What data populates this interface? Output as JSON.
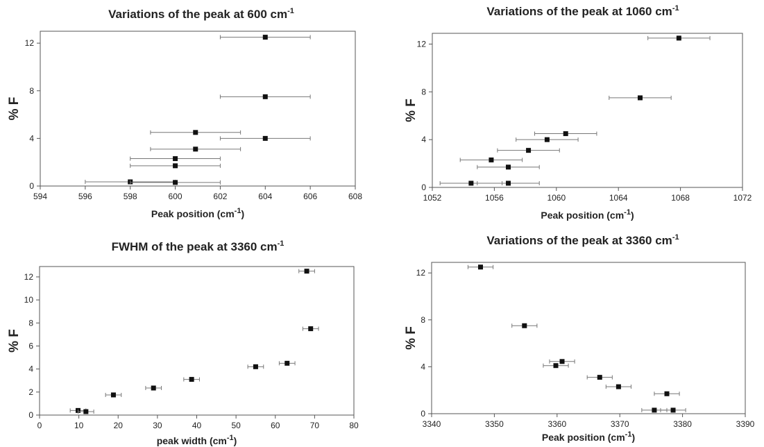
{
  "chart_data": [
    {
      "type": "scatter",
      "title": "Variations of the peak at 600 cm",
      "title_sup": "-1",
      "xlabel": "Peak position (cm",
      "xlabel_sup": "-1",
      "xlabel_suffix": ")",
      "ylabel": "% F",
      "xlim": [
        594,
        608
      ],
      "ylim": [
        0,
        13
      ],
      "xticks": [
        594,
        596,
        598,
        600,
        602,
        604,
        606,
        608
      ],
      "yticks": [
        0,
        4,
        8,
        12
      ],
      "points": [
        {
          "x": 604.0,
          "y": 12.5,
          "xerr": 2.0
        },
        {
          "x": 604.0,
          "y": 7.5,
          "xerr": 2.0
        },
        {
          "x": 600.9,
          "y": 4.5,
          "xerr": 2.0
        },
        {
          "x": 604.0,
          "y": 4.0,
          "xerr": 2.0
        },
        {
          "x": 600.9,
          "y": 3.1,
          "xerr": 2.0
        },
        {
          "x": 600.0,
          "y": 2.3,
          "xerr": 2.0
        },
        {
          "x": 600.0,
          "y": 1.7,
          "xerr": 2.0
        },
        {
          "x": 598.0,
          "y": 0.35,
          "xerr": 2.0
        },
        {
          "x": 600.0,
          "y": 0.3,
          "xerr": 2.0
        }
      ]
    },
    {
      "type": "scatter",
      "title": "Variations of the peak at 1060 cm",
      "title_sup": "-1",
      "xlabel": "Peak position (cm",
      "xlabel_sup": "-1",
      "xlabel_suffix": ")",
      "ylabel": "% F",
      "xlim": [
        1052,
        1072
      ],
      "ylim": [
        0,
        12.9
      ],
      "xticks": [
        1052,
        1056,
        1060,
        1064,
        1068,
        1072
      ],
      "yticks": [
        0,
        4,
        8,
        12
      ],
      "points": [
        {
          "x": 1067.9,
          "y": 12.5,
          "xerr": 2.0
        },
        {
          "x": 1065.4,
          "y": 7.5,
          "xerr": 2.0
        },
        {
          "x": 1060.6,
          "y": 4.5,
          "xerr": 2.0
        },
        {
          "x": 1059.4,
          "y": 4.0,
          "xerr": 2.0
        },
        {
          "x": 1058.2,
          "y": 3.1,
          "xerr": 2.0
        },
        {
          "x": 1055.8,
          "y": 2.3,
          "xerr": 2.0
        },
        {
          "x": 1056.9,
          "y": 1.7,
          "xerr": 2.0
        },
        {
          "x": 1054.5,
          "y": 0.35,
          "xerr": 2.0
        },
        {
          "x": 1056.9,
          "y": 0.35,
          "xerr": 2.0
        }
      ]
    },
    {
      "type": "scatter",
      "title": "FWHM of the peak at 3360 cm",
      "title_sup": "-1",
      "xlabel": "peak width (cm",
      "xlabel_sup": "-1",
      "xlabel_suffix": ")",
      "ylabel": "% F",
      "xlim": [
        0,
        80
      ],
      "ylim": [
        0,
        12.9
      ],
      "xticks": [
        0,
        10,
        20,
        30,
        40,
        50,
        60,
        70,
        80
      ],
      "yticks": [
        0,
        2,
        4,
        6,
        8,
        10,
        12
      ],
      "points": [
        {
          "x": 68.0,
          "y": 12.5,
          "xerr": 2.0
        },
        {
          "x": 69.0,
          "y": 7.5,
          "xerr": 2.0
        },
        {
          "x": 63.0,
          "y": 4.5,
          "xerr": 2.0
        },
        {
          "x": 55.0,
          "y": 4.2,
          "xerr": 2.0
        },
        {
          "x": 38.7,
          "y": 3.1,
          "xerr": 2.0
        },
        {
          "x": 29.0,
          "y": 2.35,
          "xerr": 2.0
        },
        {
          "x": 18.8,
          "y": 1.75,
          "xerr": 2.0
        },
        {
          "x": 9.8,
          "y": 0.4,
          "xerr": 2.0
        },
        {
          "x": 11.8,
          "y": 0.3,
          "xerr": 2.0
        }
      ]
    },
    {
      "type": "scatter",
      "title": "Variations of the peak at 3360 cm",
      "title_sup": "-1",
      "xlabel": "Peak position (cm",
      "xlabel_sup": "-1",
      "xlabel_suffix": ")",
      "ylabel": "% F",
      "xlim": [
        3340,
        3390
      ],
      "ylim": [
        0,
        12.9
      ],
      "xticks": [
        3340,
        3350,
        3360,
        3370,
        3380,
        3390
      ],
      "yticks": [
        0,
        4,
        8,
        12
      ],
      "points": [
        {
          "x": 3347.8,
          "y": 12.5,
          "xerr": 2.0
        },
        {
          "x": 3354.8,
          "y": 7.5,
          "xerr": 2.0
        },
        {
          "x": 3360.8,
          "y": 4.45,
          "xerr": 2.0
        },
        {
          "x": 3359.8,
          "y": 4.1,
          "xerr": 2.0
        },
        {
          "x": 3366.8,
          "y": 3.1,
          "xerr": 2.0
        },
        {
          "x": 3369.8,
          "y": 2.3,
          "xerr": 2.0
        },
        {
          "x": 3377.5,
          "y": 1.7,
          "xerr": 2.0
        },
        {
          "x": 3375.5,
          "y": 0.3,
          "xerr": 2.0
        },
        {
          "x": 3378.5,
          "y": 0.3,
          "xerr": 2.0
        }
      ]
    }
  ]
}
